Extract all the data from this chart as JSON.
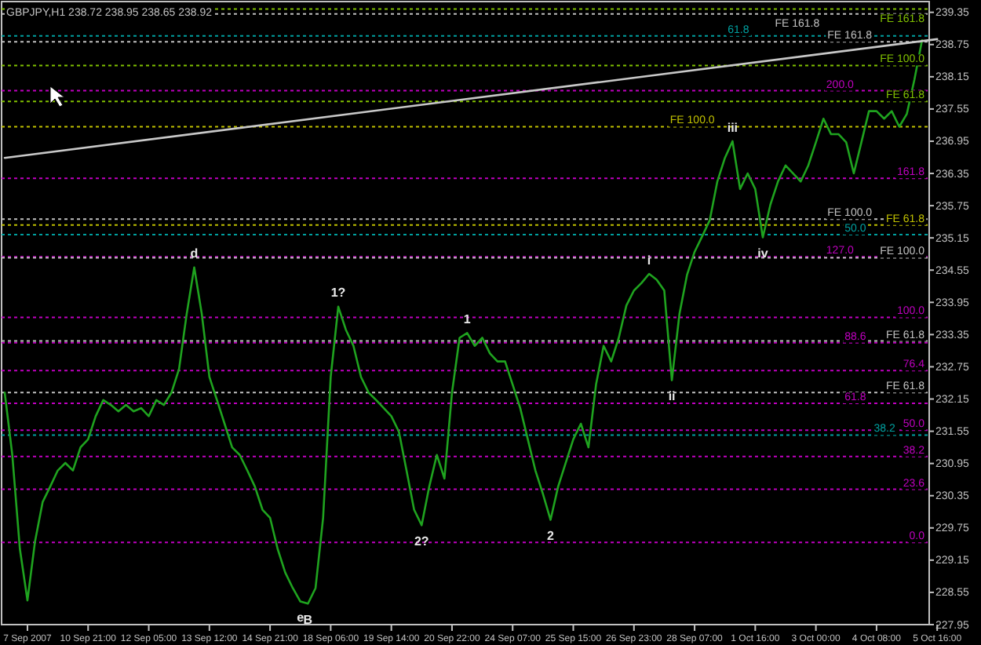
{
  "chart_data": {
    "type": "line",
    "title": "GBPJPY,H1 238.72 238.95 238.65 238.92",
    "categories": [
      null,
      null,
      null,
      "7 Sep 2007",
      null,
      null,
      null,
      null,
      null,
      null,
      null,
      "10 Sep 21:00",
      null,
      null,
      null,
      null,
      null,
      null,
      null,
      "12 Sep 05:00",
      null,
      null,
      null,
      null,
      null,
      null,
      null,
      "13 Sep 12:00",
      null,
      null,
      null,
      null,
      null,
      null,
      null,
      "14 Sep 21:00",
      null,
      null,
      null,
      null,
      null,
      null,
      null,
      "18 Sep 06:00",
      null,
      null,
      null,
      null,
      null,
      null,
      null,
      "19 Sep 14:00",
      null,
      null,
      null,
      null,
      null,
      null,
      null,
      "20 Sep 22:00",
      null,
      null,
      null,
      null,
      null,
      null,
      null,
      "24 Sep 07:00",
      null,
      null,
      null,
      null,
      null,
      null,
      null,
      "25 Sep 15:00",
      null,
      null,
      null,
      null,
      null,
      null,
      null,
      "26 Sep 23:00",
      null,
      null,
      null,
      null,
      null,
      null,
      null,
      "28 Sep 07:00",
      null,
      null,
      null,
      null,
      null,
      null,
      null,
      "1 Oct 16:00",
      null,
      null,
      null,
      null,
      null,
      null,
      null,
      "3 Oct 00:00",
      null,
      null,
      null,
      null,
      null,
      null,
      null,
      "4 Oct 08:00",
      null,
      null,
      null,
      null,
      null,
      null,
      null,
      "5 Oct 16:00"
    ],
    "ylim": [
      227.95,
      239.55
    ],
    "yticks": [
      239.35,
      238.75,
      238.15,
      237.55,
      236.95,
      236.35,
      235.75,
      235.15,
      234.55,
      233.95,
      233.35,
      232.75,
      232.15,
      231.55,
      230.95,
      230.35,
      229.75,
      229.15,
      228.55,
      227.95
    ],
    "grid": false,
    "marker": "none",
    "line_style": "solid",
    "series": [
      {
        "color": "#1fa31f",
        "values": [
          232.27,
          231.11,
          229.36,
          228.4,
          229.5,
          230.23,
          230.52,
          230.82,
          230.96,
          230.82,
          231.25,
          231.4,
          231.83,
          232.13,
          232.04,
          231.92,
          232.04,
          231.92,
          231.98,
          231.83,
          232.13,
          232.04,
          232.27,
          232.71,
          233.73,
          234.6,
          233.73,
          232.56,
          232.13,
          231.69,
          231.25,
          231.11,
          230.82,
          230.52,
          230.09,
          229.94,
          229.36,
          228.92,
          228.63,
          228.38,
          228.34,
          228.63,
          229.94,
          232.56,
          233.87,
          233.44,
          233.14,
          232.56,
          232.27,
          232.13,
          231.98,
          231.83,
          231.54,
          230.82,
          230.09,
          229.8,
          230.52,
          231.11,
          230.67,
          232.27,
          233.29,
          233.38,
          233.14,
          233.29,
          233.0,
          232.85,
          232.85,
          232.42,
          231.98,
          231.4,
          230.82,
          230.38,
          229.9,
          230.52,
          230.96,
          231.4,
          231.69,
          231.25,
          232.42,
          233.14,
          232.85,
          233.29,
          233.89,
          234.17,
          234.31,
          234.48,
          234.37,
          234.17,
          232.5,
          233.73,
          234.46,
          234.89,
          235.18,
          235.48,
          236.2,
          236.64,
          236.95,
          236.06,
          236.35,
          236.06,
          235.16,
          235.77,
          236.2,
          236.5,
          236.35,
          236.2,
          236.5,
          236.93,
          237.37,
          237.08,
          237.08,
          236.93,
          236.35,
          236.93,
          237.51,
          237.51,
          237.37,
          237.51,
          237.22,
          237.46,
          238.1,
          238.83,
          null,
          null
        ]
      },
      {
        "type": "line",
        "color": "#c8c8c8",
        "values": [
          236.64,
          null,
          null,
          null,
          null,
          null,
          null,
          null,
          null,
          null,
          null,
          null,
          null,
          null,
          null,
          null,
          null,
          null,
          null,
          null,
          null,
          null,
          null,
          null,
          null,
          null,
          null,
          null,
          null,
          null,
          null,
          null,
          null,
          null,
          null,
          null,
          null,
          null,
          null,
          null,
          null,
          null,
          null,
          null,
          null,
          null,
          null,
          null,
          null,
          null,
          null,
          null,
          null,
          null,
          null,
          null,
          null,
          null,
          null,
          null,
          null,
          null,
          null,
          null,
          null,
          null,
          null,
          null,
          null,
          null,
          null,
          null,
          null,
          null,
          null,
          null,
          null,
          null,
          null,
          null,
          null,
          null,
          null,
          null,
          null,
          null,
          null,
          null,
          null,
          null,
          null,
          null,
          null,
          null,
          null,
          null,
          null,
          null,
          null,
          null,
          null,
          null,
          null,
          null,
          null,
          null,
          null,
          null,
          null,
          null,
          null,
          null,
          null,
          null,
          null,
          null,
          null,
          null,
          null,
          null,
          null,
          null,
          null,
          238.85
        ]
      }
    ],
    "ref_lines": [
      {
        "axis": "y",
        "value": 237.89,
        "color": "#c000c0",
        "line_style": "dotted"
      },
      {
        "axis": "y",
        "value": 236.26,
        "color": "#c000c0",
        "line_style": "dotted"
      },
      {
        "axis": "y",
        "value": 234.8,
        "color": "#c000c0",
        "line_style": "dotted"
      },
      {
        "axis": "y",
        "value": 233.67,
        "color": "#c000c0",
        "line_style": "dotted"
      },
      {
        "axis": "y",
        "value": 233.2,
        "color": "#c000c0",
        "line_style": "dotted"
      },
      {
        "axis": "y",
        "value": 232.68,
        "color": "#c000c0",
        "line_style": "dotted"
      },
      {
        "axis": "y",
        "value": 232.07,
        "color": "#c000c0",
        "line_style": "dotted"
      },
      {
        "axis": "y",
        "value": 231.57,
        "color": "#c000c0",
        "line_style": "dotted"
      },
      {
        "axis": "y",
        "value": 231.08,
        "color": "#c000c0",
        "line_style": "dotted"
      },
      {
        "axis": "y",
        "value": 230.47,
        "color": "#c000c0",
        "line_style": "dotted"
      },
      {
        "axis": "y",
        "value": 229.48,
        "color": "#c000c0",
        "line_style": "dotted"
      },
      {
        "axis": "y",
        "value": 238.91,
        "color": "#00a0a0",
        "line_style": "dotted"
      },
      {
        "axis": "y",
        "value": 235.21,
        "color": "#00a0a0",
        "line_style": "dotted"
      },
      {
        "axis": "y",
        "value": 231.48,
        "color": "#00a0a0",
        "line_style": "dotted"
      },
      {
        "axis": "y",
        "value": 239.41,
        "label": "FE 161.8",
        "color": "#80c000",
        "line_style": "dotted"
      },
      {
        "axis": "y",
        "value": 238.36,
        "label": "FE 100.0",
        "color": "#80c000",
        "line_style": "dotted"
      },
      {
        "axis": "y",
        "value": 237.69,
        "label": "FE 61.8",
        "color": "#80c000",
        "line_style": "dotted"
      },
      {
        "axis": "y",
        "value": 238.8,
        "label": "FE 161.8",
        "color": "#c0c0c0",
        "line_style": "dotted"
      },
      {
        "axis": "y",
        "value": 234.78,
        "label": "FE 100.0",
        "color": "#c0c0c0",
        "line_style": "dotted"
      },
      {
        "axis": "y",
        "value": 232.27,
        "label": "FE 61.8",
        "color": "#c0c0c0",
        "line_style": "dotted"
      },
      {
        "axis": "y",
        "value": 237.22,
        "label": "FE 100.0",
        "color": "#c0c000",
        "line_style": "dotted"
      },
      {
        "axis": "y",
        "value": 235.39,
        "label": "FE 61.8",
        "color": "#c0c000",
        "line_style": "dotted"
      },
      {
        "axis": "y",
        "value": 239.32,
        "label": "FE 161.8",
        "color": "#c0c0c0",
        "line_style": "dotted"
      },
      {
        "axis": "y",
        "value": 235.5,
        "label": "FE 100.0",
        "color": "#c0c0c0",
        "line_style": "dotted"
      },
      {
        "axis": "y",
        "value": 233.23,
        "label": "FE 61.8",
        "color": "#c0c0c0",
        "line_style": "dotted"
      }
    ],
    "annotations": [
      {
        "text": "d",
        "y": 234.6
      },
      {
        "text": "e",
        "y": 228.38
      },
      {
        "text": "B",
        "y": 228.34
      },
      {
        "text": "1?",
        "y": 233.87
      },
      {
        "text": "1",
        "y": 233.38
      },
      {
        "text": "2?",
        "y": 229.8
      },
      {
        "text": "2",
        "y": 229.9
      },
      {
        "text": "i",
        "y": 234.48
      },
      {
        "text": "ii",
        "y": 232.5
      },
      {
        "text": "iii",
        "y": 236.95
      },
      {
        "text": "iv",
        "y": 235.16
      },
      {
        "text": "200.0",
        "y": 237.89
      },
      {
        "text": "161.8",
        "y": 236.26
      },
      {
        "text": "127.0",
        "y": 234.8
      },
      {
        "text": "100.0",
        "y": 233.67
      },
      {
        "text": "88.6",
        "y": 233.2
      },
      {
        "text": "76.4",
        "y": 232.68
      },
      {
        "text": "61.8",
        "y": 232.07
      },
      {
        "text": "50.0",
        "y": 231.57
      },
      {
        "text": "38.2",
        "y": 231.08
      },
      {
        "text": "23.6",
        "y": 230.47
      },
      {
        "text": "0.0",
        "y": 229.48
      },
      {
        "text": "61.8",
        "y": 238.91
      },
      {
        "text": "50.0",
        "y": 235.21
      },
      {
        "text": "38.2",
        "y": 231.48
      }
    ]
  }
}
